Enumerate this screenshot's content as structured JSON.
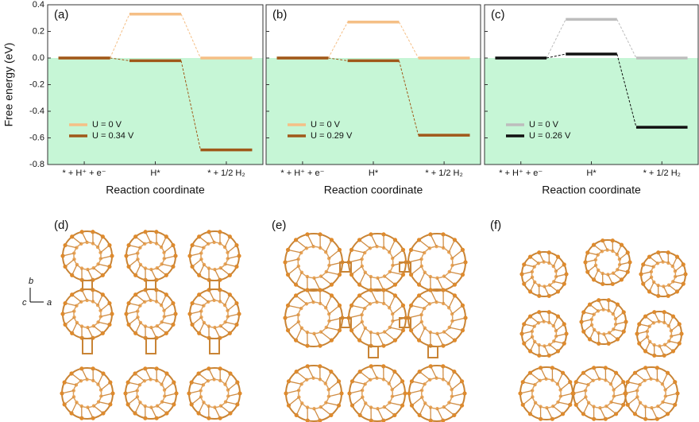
{
  "chart_data": [
    {
      "type": "energy-levels",
      "panel": "(a)",
      "ylabel": "Free energy (eV)",
      "xlabel": "Reaction coordinate",
      "categories": [
        "* + H⁺ + e⁻",
        "H*",
        "* + 1/2 H₂"
      ],
      "series": [
        {
          "name": "U = 0 V",
          "color": "#f5bf86",
          "values": [
            0,
            0.33,
            0
          ]
        },
        {
          "name": "U = 0.34 V",
          "color": "#a0581a",
          "values": [
            0,
            -0.02,
            -0.69
          ]
        }
      ],
      "ylim": [
        -0.8,
        0.4
      ],
      "yticks": [
        -0.8,
        -0.6,
        -0.4,
        -0.2,
        {
          "value": 0,
          "label": "0.0"
        },
        0.2,
        0.4
      ]
    },
    {
      "type": "energy-levels",
      "panel": "(b)",
      "xlabel": "Reaction coordinate",
      "categories": [
        "* + H⁺ + e⁻",
        "H*",
        "* + 1/2 H₂"
      ],
      "series": [
        {
          "name": "U = 0 V",
          "color": "#f5bf86",
          "values": [
            0,
            0.27,
            0
          ]
        },
        {
          "name": "U = 0.29 V",
          "color": "#a0581a",
          "values": [
            0,
            -0.02,
            -0.58
          ]
        }
      ],
      "ylim": [
        -0.8,
        0.4
      ]
    },
    {
      "type": "energy-levels",
      "panel": "(c)",
      "xlabel": "Reaction coordinate",
      "categories": [
        "* + H⁺ + e⁻",
        "H*",
        "* + 1/2 H₂"
      ],
      "series": [
        {
          "name": "U = 0 V",
          "color": "#bdbdbd",
          "values": [
            0,
            0.29,
            0
          ]
        },
        {
          "name": "U = 0.26 V",
          "color": "#111111",
          "values": [
            0,
            0.03,
            -0.52
          ]
        }
      ],
      "ylim": [
        -0.8,
        0.4
      ]
    }
  ],
  "structures": {
    "panels": [
      "(d)",
      "(e)",
      "(f)"
    ],
    "axes": [
      "b",
      "c",
      "a"
    ]
  }
}
